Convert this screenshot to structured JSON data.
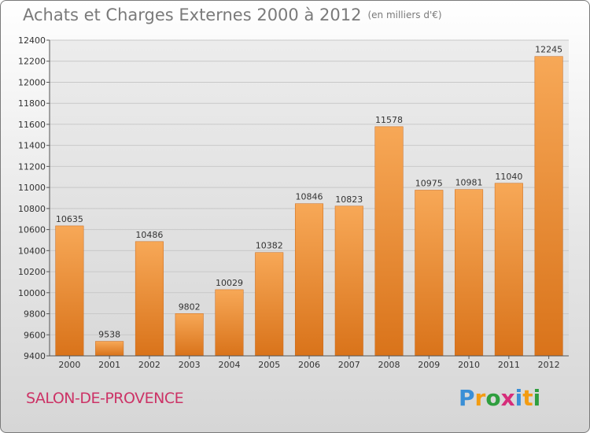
{
  "title": "Achats et Charges Externes 2000 à 2012",
  "subtitle": "(en milliers d'€)",
  "city": "SALON-DE-PROVENCE",
  "logo": {
    "text": "Proxiti",
    "letters": [
      {
        "ch": "P",
        "color": "#3a8fd6"
      },
      {
        "ch": "r",
        "color": "#f39c12"
      },
      {
        "ch": "o",
        "color": "#2e9e3e"
      },
      {
        "ch": "x",
        "color": "#d62d7a"
      },
      {
        "ch": "i",
        "color": "#3a8fd6"
      },
      {
        "ch": "t",
        "color": "#f39c12"
      },
      {
        "ch": "i",
        "color": "#2e9e3e"
      }
    ]
  },
  "colors": {
    "bar_light": "#f7a857",
    "bar_dark": "#d9731a",
    "title": "#7a7a7a",
    "city": "#cc3366",
    "grid": "#c8c8c8",
    "plot_bg": "#e0e0e0"
  },
  "chart_data": {
    "type": "bar",
    "title": "Achats et Charges Externes 2000 à 2012",
    "categories": [
      "2000",
      "2001",
      "2002",
      "2003",
      "2004",
      "2005",
      "2006",
      "2007",
      "2008",
      "2009",
      "2010",
      "2011",
      "2012"
    ],
    "values": [
      10635,
      9538,
      10486,
      9802,
      10029,
      10382,
      10846,
      10823,
      11578,
      10975,
      10981,
      11040,
      12245
    ],
    "ylim": [
      9400,
      12400
    ],
    "yticks": [
      9400,
      9600,
      9800,
      10000,
      10200,
      10400,
      10600,
      10800,
      11000,
      11200,
      11400,
      11600,
      11800,
      12000,
      12200,
      12400
    ],
    "grid": true,
    "xlabel": "",
    "ylabel": ""
  }
}
